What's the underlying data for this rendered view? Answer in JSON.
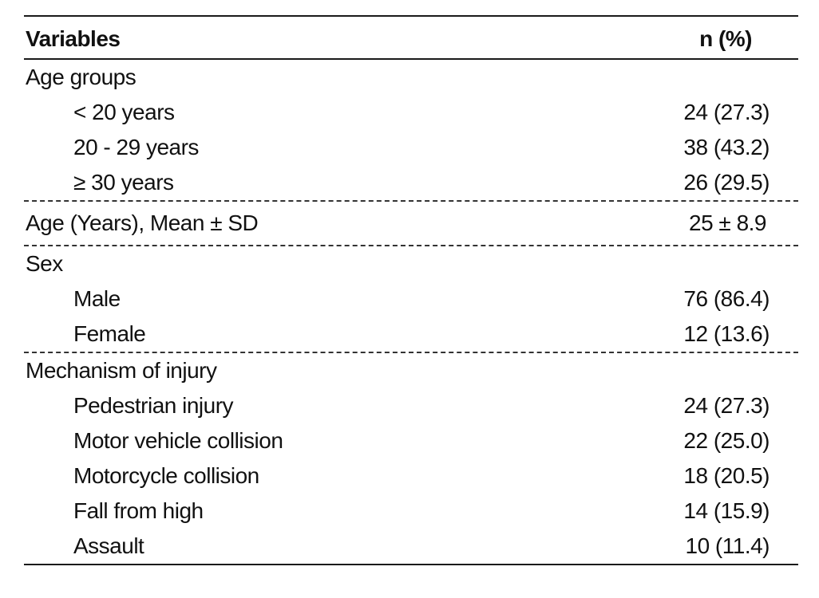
{
  "table": {
    "header": {
      "variables": "Variables",
      "n_percent": "n (%)"
    },
    "sections": [
      {
        "title": "Age groups",
        "rows": [
          {
            "label": "< 20 years",
            "value": "24 (27.3)"
          },
          {
            "label": "20 - 29 years",
            "value": "38 (43.2)"
          },
          {
            "label": "≥ 30 years",
            "value": "26 (29.5)"
          }
        ]
      },
      {
        "title": "Age (Years), Mean ± SD",
        "value": "25 ± 8.9"
      },
      {
        "title": "Sex",
        "rows": [
          {
            "label": "Male",
            "value": "76 (86.4)"
          },
          {
            "label": "Female",
            "value": "12 (13.6)"
          }
        ]
      },
      {
        "title": "Mechanism of injury",
        "rows": [
          {
            "label": "Pedestrian injury",
            "value": "24 (27.3)"
          },
          {
            "label": "Motor vehicle collision",
            "value": "22 (25.0)"
          },
          {
            "label": "Motorcycle collision",
            "value": "18 (20.5)"
          },
          {
            "label": "Fall from high",
            "value": "14 (15.9)"
          },
          {
            "label": "Assault",
            "value": "10 (11.4)"
          }
        ]
      }
    ]
  }
}
